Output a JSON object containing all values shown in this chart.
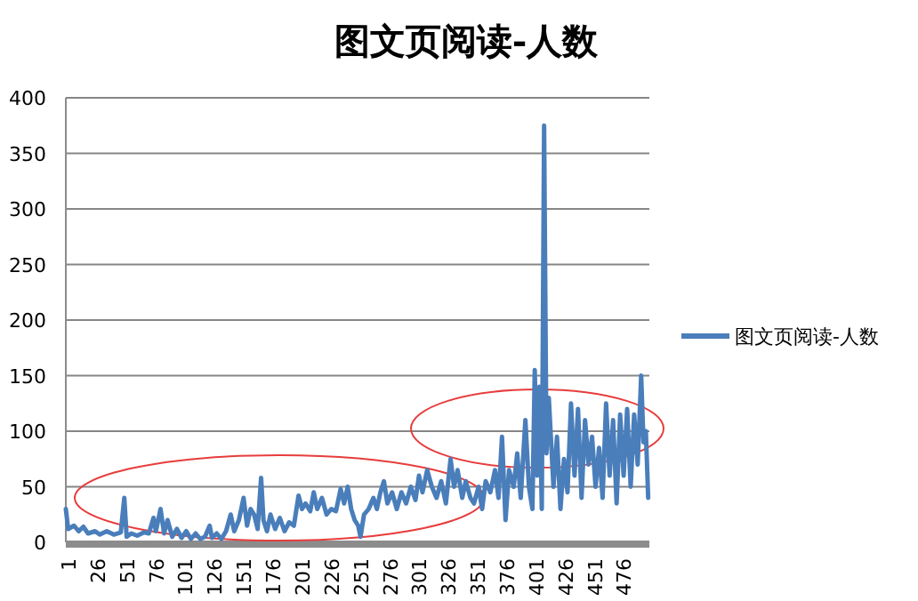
{
  "chart_data": {
    "type": "line",
    "title": "图文页阅读-人数",
    "legend": "right",
    "grid": "y",
    "xlim": [
      1,
      500
    ],
    "ylim": [
      0,
      400
    ],
    "yticks": [
      0,
      50,
      100,
      150,
      200,
      250,
      300,
      350,
      400
    ],
    "xticks": [
      1,
      26,
      51,
      76,
      101,
      126,
      151,
      176,
      201,
      226,
      251,
      276,
      301,
      326,
      351,
      376,
      401,
      426,
      451,
      476
    ],
    "series": [
      {
        "name": "图文页阅读-人数",
        "color": "#4a7ebb",
        "x": [
          1,
          3,
          8,
          12,
          16,
          20,
          26,
          30,
          36,
          42,
          48,
          51,
          53,
          57,
          62,
          68,
          72,
          76,
          78,
          82,
          85,
          88,
          92,
          96,
          100,
          104,
          108,
          112,
          116,
          120,
          124,
          126,
          130,
          134,
          138,
          142,
          145,
          149,
          153,
          156,
          159,
          162,
          165,
          168,
          170,
          173,
          176,
          180,
          184,
          188,
          192,
          196,
          200,
          203,
          206,
          210,
          213,
          216,
          220,
          224,
          228,
          232,
          236,
          239,
          242,
          245,
          248,
          251,
          253,
          256,
          260,
          264,
          267,
          270,
          273,
          276,
          280,
          284,
          288,
          292,
          296,
          300,
          303,
          306,
          310,
          314,
          318,
          322,
          326,
          330,
          333,
          336,
          340,
          343,
          347,
          350,
          354,
          357,
          360,
          364,
          368,
          371,
          374,
          377,
          380,
          384,
          387,
          390,
          394,
          397,
          400,
          402,
          404,
          406,
          408,
          410,
          412,
          414,
          416,
          418,
          421,
          424,
          427,
          430,
          433,
          436,
          439,
          442,
          445,
          448,
          451,
          454,
          457,
          460,
          463,
          466,
          469,
          472,
          475,
          478,
          481,
          484,
          487,
          490,
          493,
          495,
          497,
          499
        ],
        "values": [
          30,
          12,
          15,
          10,
          14,
          8,
          10,
          7,
          10,
          7,
          9,
          40,
          5,
          8,
          6,
          9,
          8,
          22,
          10,
          30,
          8,
          20,
          5,
          12,
          4,
          10,
          3,
          8,
          3,
          5,
          15,
          4,
          8,
          3,
          10,
          25,
          10,
          20,
          40,
          15,
          30,
          25,
          12,
          58,
          20,
          10,
          25,
          12,
          22,
          10,
          18,
          15,
          42,
          30,
          35,
          28,
          45,
          30,
          40,
          25,
          30,
          28,
          48,
          35,
          50,
          30,
          20,
          15,
          5,
          25,
          30,
          40,
          30,
          45,
          55,
          35,
          45,
          30,
          45,
          35,
          50,
          38,
          60,
          45,
          65,
          50,
          40,
          55,
          35,
          75,
          50,
          65,
          40,
          55,
          40,
          35,
          50,
          30,
          55,
          45,
          65,
          40,
          95,
          20,
          65,
          50,
          80,
          40,
          110,
          50,
          30,
          155,
          60,
          140,
          30,
          375,
          80,
          130,
          90,
          50,
          95,
          30,
          75,
          45,
          125,
          60,
          120,
          40,
          110,
          70,
          95,
          50,
          85,
          40,
          125,
          60,
          110,
          35,
          115,
          60,
          120,
          50,
          115,
          70,
          150,
          90,
          100,
          40
        ]
      }
    ]
  }
}
